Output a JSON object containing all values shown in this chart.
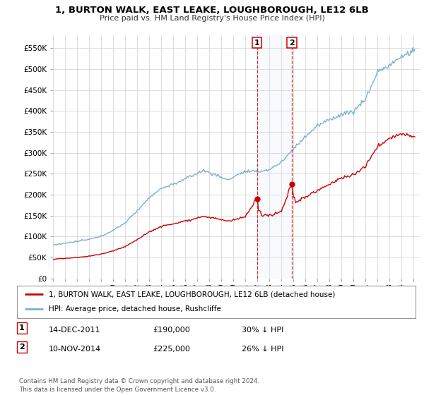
{
  "title": "1, BURTON WALK, EAST LEAKE, LOUGHBOROUGH, LE12 6LB",
  "subtitle": "Price paid vs. HM Land Registry's House Price Index (HPI)",
  "ylabel_vals": [
    0,
    50000,
    100000,
    150000,
    200000,
    250000,
    300000,
    350000,
    400000,
    450000,
    500000,
    550000
  ],
  "ylabel_labels": [
    "£0",
    "£50K",
    "£100K",
    "£150K",
    "£200K",
    "£250K",
    "£300K",
    "£350K",
    "£400K",
    "£450K",
    "£500K",
    "£550K"
  ],
  "ylim": [
    0,
    580000
  ],
  "xlim_start": 1995.0,
  "xlim_end": 2025.5,
  "hpi_color": "#7bafd4",
  "price_color": "#cc0000",
  "sale1_year": 2011.96,
  "sale1_price": 190000,
  "sale2_year": 2014.86,
  "sale2_price": 225000,
  "legend_line1": "1, BURTON WALK, EAST LEAKE, LOUGHBOROUGH, LE12 6LB (detached house)",
  "legend_line2": "HPI: Average price, detached house, Rushcliffe",
  "footnote": "Contains HM Land Registry data © Crown copyright and database right 2024.\nThis data is licensed under the Open Government Licence v3.0.",
  "table_row1": [
    "1",
    "14-DEC-2011",
    "£190,000",
    "30% ↓ HPI"
  ],
  "table_row2": [
    "2",
    "10-NOV-2014",
    "£225,000",
    "26% ↓ HPI"
  ],
  "background_color": "#ffffff",
  "grid_color": "#d8d8d8"
}
